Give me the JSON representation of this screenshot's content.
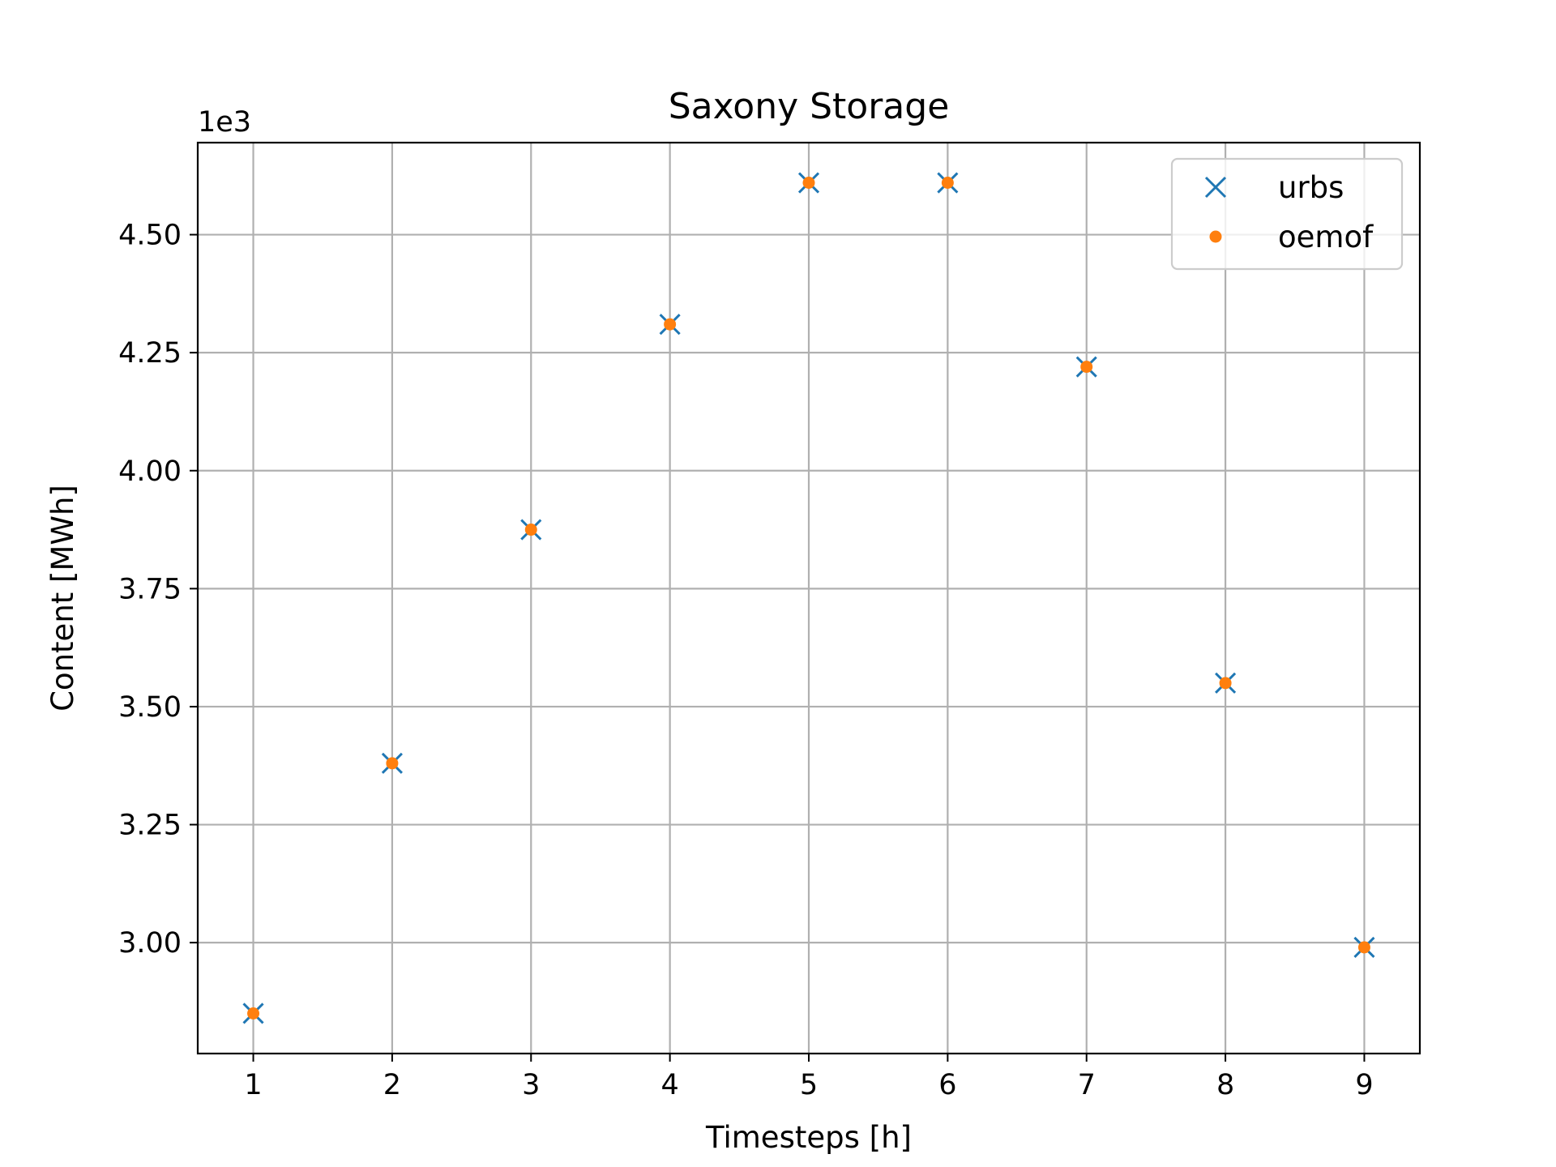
{
  "chart_data": {
    "type": "scatter",
    "title": "Saxony Storage",
    "xlabel": "Timesteps [h]",
    "ylabel": "Content [MWh]",
    "y_offset_label": "1e3",
    "xlim": [
      0.6,
      9.4
    ],
    "ylim": [
      2.765,
      4.695
    ],
    "x_ticks": [
      1,
      2,
      3,
      4,
      5,
      6,
      7,
      8,
      9
    ],
    "x_tick_labels": [
      "1",
      "2",
      "3",
      "4",
      "5",
      "6",
      "7",
      "8",
      "9"
    ],
    "y_ticks": [
      3.0,
      3.25,
      3.5,
      3.75,
      4.0,
      4.25,
      4.5
    ],
    "y_tick_labels": [
      "3.00",
      "3.25",
      "3.50",
      "3.75",
      "4.00",
      "4.25",
      "4.50"
    ],
    "grid": true,
    "legend_position": "top-right",
    "series": [
      {
        "name": "urbs",
        "marker": "x",
        "color": "#1f77b4",
        "x": [
          1,
          2,
          3,
          4,
          5,
          6,
          7,
          8,
          9
        ],
        "y": [
          2.85,
          3.38,
          3.875,
          4.31,
          4.61,
          4.61,
          4.22,
          3.55,
          2.99
        ]
      },
      {
        "name": "oemof",
        "marker": "dot",
        "color": "#ff7f0e",
        "x": [
          1,
          2,
          3,
          4,
          5,
          6,
          7,
          8,
          9
        ],
        "y": [
          2.85,
          3.38,
          3.875,
          4.31,
          4.61,
          4.61,
          4.22,
          3.55,
          2.99
        ]
      }
    ]
  }
}
